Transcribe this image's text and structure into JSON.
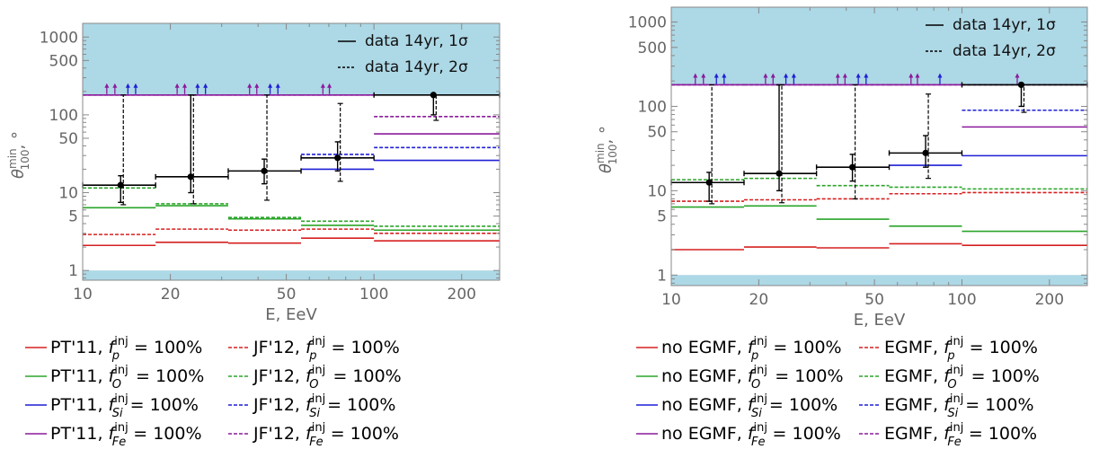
{
  "chart_data": [
    {
      "type": "line",
      "panel": "left",
      "xlabel": "E, EeV",
      "ylabel_base": "θ",
      "ylabel_sup": "min",
      "ylabel_sub": "100",
      "ylabel_tail": ", °",
      "x_scale": "log",
      "y_scale": "log",
      "xlim": [
        10,
        270
      ],
      "ylim": [
        0.75,
        1500
      ],
      "x_ticks": [
        {
          "v": 10,
          "label": "10"
        },
        {
          "v": 20,
          "label": "20"
        },
        {
          "v": 50,
          "label": "50"
        },
        {
          "v": 100,
          "label": "100"
        },
        {
          "v": 200,
          "label": "200"
        }
      ],
      "y_ticks": [
        {
          "v": 1,
          "label": "1"
        },
        {
          "v": 5,
          "label": "5"
        },
        {
          "v": 10,
          "label": "10"
        },
        {
          "v": 50,
          "label": "50"
        },
        {
          "v": 100,
          "label": "100"
        },
        {
          "v": 500,
          "label": "500"
        },
        {
          "v": 1000,
          "label": "1000"
        }
      ],
      "shade_bands": [
        {
          "from": 0.75,
          "to": 1.0
        },
        {
          "from": 180,
          "to": 1500
        }
      ],
      "bin_edges": [
        10,
        17.8,
        31.6,
        56.2,
        100,
        270
      ],
      "data_legend": [
        {
          "style": "solid",
          "label": "data 14yr, 1σ"
        },
        {
          "style": "dashed",
          "label": "data 14yr, 2σ"
        }
      ],
      "data_points": [
        {
          "x": 13.5,
          "y": 12.5,
          "xlo": 10,
          "xhi": 17.8,
          "y1lo": 7.5,
          "y1hi": 16.5,
          "y2lo": 7,
          "y2hi": 180
        },
        {
          "x": 23.5,
          "y": 16,
          "xlo": 17.8,
          "xhi": 31.6,
          "y1lo": 10,
          "y1hi": 180,
          "y2lo": 7.2,
          "y2hi": 180
        },
        {
          "x": 42,
          "y": 19,
          "xlo": 31.6,
          "xhi": 56.2,
          "y1lo": 13,
          "y1hi": 27,
          "y2lo": 8,
          "y2hi": 180
        },
        {
          "x": 75,
          "y": 28,
          "xlo": 56.2,
          "xhi": 100,
          "y1lo": 19,
          "y1hi": 45,
          "y2lo": 14,
          "y2hi": 140
        },
        {
          "x": 160,
          "y": 180,
          "xlo": 100,
          "xhi": 270,
          "y1lo": 100,
          "y1hi": 180,
          "y2lo": 85,
          "y2hi": 180
        }
      ],
      "series": [
        {
          "color": "#d62020",
          "style": "solid",
          "values": [
            2.1,
            2.3,
            2.25,
            2.6,
            2.4
          ]
        },
        {
          "color": "#d62020",
          "style": "dashed",
          "values": [
            2.9,
            3.4,
            3.3,
            3.4,
            3.0
          ]
        },
        {
          "color": "#2aa52a",
          "style": "solid",
          "values": [
            6.4,
            6.8,
            4.6,
            3.8,
            3.3
          ]
        },
        {
          "color": "#2aa52a",
          "style": "dashed",
          "values": [
            11.5,
            7.2,
            4.8,
            4.3,
            3.7
          ]
        },
        {
          "color": "#1f1fd6",
          "style": "solid",
          "values": [
            null,
            null,
            null,
            20,
            26
          ]
        },
        {
          "color": "#1f1fd6",
          "style": "dashed",
          "values": [
            null,
            null,
            null,
            31,
            38
          ]
        },
        {
          "color": "#8b1a9b",
          "style": "solid",
          "values": [
            180,
            180,
            180,
            180,
            57
          ]
        },
        {
          "color": "#8b1a9b",
          "style": "dashed",
          "values": [
            180,
            180,
            180,
            180,
            95
          ]
        }
      ],
      "limit_arrows": [
        {
          "x": 12.1,
          "color": "#8b1a9b"
        },
        {
          "x": 12.9,
          "color": "#8b1a9b"
        },
        {
          "x": 14.3,
          "color": "#1f1fd6"
        },
        {
          "x": 15.2,
          "color": "#1f1fd6"
        },
        {
          "x": 21.1,
          "color": "#8b1a9b"
        },
        {
          "x": 22.4,
          "color": "#8b1a9b"
        },
        {
          "x": 24.8,
          "color": "#1f1fd6"
        },
        {
          "x": 26.4,
          "color": "#1f1fd6"
        },
        {
          "x": 37.4,
          "color": "#8b1a9b"
        },
        {
          "x": 39.6,
          "color": "#8b1a9b"
        },
        {
          "x": 44.0,
          "color": "#1f1fd6"
        },
        {
          "x": 46.8,
          "color": "#1f1fd6"
        },
        {
          "x": 66.8,
          "color": "#8b1a9b"
        },
        {
          "x": 70.3,
          "color": "#8b1a9b"
        }
      ],
      "legend": [
        {
          "color": "#d62020",
          "style": "solid",
          "text": "PT'11, ",
          "sub": "p"
        },
        {
          "color": "#d62020",
          "style": "dashed",
          "text": "JF'12, ",
          "sub": "p"
        },
        {
          "color": "#2aa52a",
          "style": "solid",
          "text": "PT'11, ",
          "sub": "O"
        },
        {
          "color": "#2aa52a",
          "style": "dashed",
          "text": "JF'12, ",
          "sub": "O"
        },
        {
          "color": "#1f1fd6",
          "style": "solid",
          "text": "PT'11, ",
          "sub": "Si"
        },
        {
          "color": "#1f1fd6",
          "style": "dashed",
          "text": "JF'12, ",
          "sub": "Si"
        },
        {
          "color": "#8b1a9b",
          "style": "solid",
          "text": "PT'11, ",
          "sub": "Fe"
        },
        {
          "color": "#8b1a9b",
          "style": "dashed",
          "text": "JF'12, ",
          "sub": "Fe"
        }
      ],
      "legend_f": "f",
      "legend_sup": "inj",
      "legend_tail": " = 100%"
    },
    {
      "type": "line",
      "panel": "right",
      "xlabel": "E, EeV",
      "ylabel_base": "θ",
      "ylabel_sup": "min",
      "ylabel_sub": "100",
      "ylabel_tail": ", °",
      "x_scale": "log",
      "y_scale": "log",
      "xlim": [
        10,
        270
      ],
      "ylim": [
        0.75,
        1500
      ],
      "x_ticks": [
        {
          "v": 10,
          "label": "10"
        },
        {
          "v": 20,
          "label": "20"
        },
        {
          "v": 50,
          "label": "50"
        },
        {
          "v": 100,
          "label": "100"
        },
        {
          "v": 200,
          "label": "200"
        }
      ],
      "y_ticks": [
        {
          "v": 1,
          "label": "1"
        },
        {
          "v": 5,
          "label": "5"
        },
        {
          "v": 10,
          "label": "10"
        },
        {
          "v": 50,
          "label": "50"
        },
        {
          "v": 100,
          "label": "100"
        },
        {
          "v": 500,
          "label": "500"
        },
        {
          "v": 1000,
          "label": "1000"
        }
      ],
      "shade_bands": [
        {
          "from": 0.75,
          "to": 1.0
        },
        {
          "from": 180,
          "to": 1500
        }
      ],
      "bin_edges": [
        10,
        17.8,
        31.6,
        56.2,
        100,
        270
      ],
      "data_legend": [
        {
          "style": "solid",
          "label": "data 14yr, 1σ"
        },
        {
          "style": "dashed",
          "label": "data 14yr, 2σ"
        }
      ],
      "data_points": [
        {
          "x": 13.5,
          "y": 12.5,
          "xlo": 10,
          "xhi": 17.8,
          "y1lo": 7.5,
          "y1hi": 16.5,
          "y2lo": 7,
          "y2hi": 180
        },
        {
          "x": 23.5,
          "y": 16,
          "xlo": 17.8,
          "xhi": 31.6,
          "y1lo": 10,
          "y1hi": 180,
          "y2lo": 7.2,
          "y2hi": 180
        },
        {
          "x": 42,
          "y": 19,
          "xlo": 31.6,
          "xhi": 56.2,
          "y1lo": 13,
          "y1hi": 27,
          "y2lo": 8,
          "y2hi": 180
        },
        {
          "x": 75,
          "y": 28,
          "xlo": 56.2,
          "xhi": 100,
          "y1lo": 19,
          "y1hi": 45,
          "y2lo": 14,
          "y2hi": 140
        },
        {
          "x": 160,
          "y": 180,
          "xlo": 100,
          "xhi": 270,
          "y1lo": 100,
          "y1hi": 180,
          "y2lo": 85,
          "y2hi": 180
        }
      ],
      "series": [
        {
          "color": "#d62020",
          "style": "solid",
          "values": [
            2.0,
            2.15,
            2.1,
            2.35,
            2.25
          ]
        },
        {
          "color": "#d62020",
          "style": "dashed",
          "values": [
            7.5,
            7.8,
            8.0,
            9.2,
            9.5
          ]
        },
        {
          "color": "#2aa52a",
          "style": "solid",
          "values": [
            6.4,
            6.6,
            4.6,
            3.8,
            3.3
          ]
        },
        {
          "color": "#2aa52a",
          "style": "dashed",
          "values": [
            13.5,
            14,
            11.5,
            11,
            10.5
          ]
        },
        {
          "color": "#1f1fd6",
          "style": "solid",
          "values": [
            null,
            null,
            null,
            20,
            26
          ]
        },
        {
          "color": "#1f1fd6",
          "style": "dashed",
          "values": [
            null,
            null,
            null,
            null,
            90
          ]
        },
        {
          "color": "#8b1a9b",
          "style": "solid",
          "values": [
            180,
            180,
            180,
            180,
            57
          ]
        },
        {
          "color": "#8b1a9b",
          "style": "dashed",
          "values": [
            180,
            180,
            180,
            180,
            180
          ]
        }
      ],
      "limit_arrows": [
        {
          "x": 12.1,
          "color": "#8b1a9b"
        },
        {
          "x": 12.9,
          "color": "#8b1a9b"
        },
        {
          "x": 14.3,
          "color": "#1f1fd6"
        },
        {
          "x": 15.2,
          "color": "#1f1fd6"
        },
        {
          "x": 21.1,
          "color": "#8b1a9b"
        },
        {
          "x": 22.4,
          "color": "#8b1a9b"
        },
        {
          "x": 24.8,
          "color": "#1f1fd6"
        },
        {
          "x": 26.4,
          "color": "#1f1fd6"
        },
        {
          "x": 37.4,
          "color": "#8b1a9b"
        },
        {
          "x": 39.6,
          "color": "#8b1a9b"
        },
        {
          "x": 44.0,
          "color": "#1f1fd6"
        },
        {
          "x": 46.8,
          "color": "#1f1fd6"
        },
        {
          "x": 66.8,
          "color": "#8b1a9b"
        },
        {
          "x": 70.3,
          "color": "#8b1a9b"
        },
        {
          "x": 84,
          "color": "#1f1fd6"
        },
        {
          "x": 155,
          "color": "#8b1a9b"
        }
      ],
      "legend": [
        {
          "color": "#d62020",
          "style": "solid",
          "text": "no EGMF, ",
          "sub": "p"
        },
        {
          "color": "#d62020",
          "style": "dashed",
          "text": "EGMF, ",
          "sub": "p"
        },
        {
          "color": "#2aa52a",
          "style": "solid",
          "text": "no EGMF, ",
          "sub": "O"
        },
        {
          "color": "#2aa52a",
          "style": "dashed",
          "text": "EGMF, ",
          "sub": "O"
        },
        {
          "color": "#1f1fd6",
          "style": "solid",
          "text": "no EGMF, ",
          "sub": "Si"
        },
        {
          "color": "#1f1fd6",
          "style": "dashed",
          "text": "EGMF, ",
          "sub": "Si"
        },
        {
          "color": "#8b1a9b",
          "style": "solid",
          "text": "no EGMF, ",
          "sub": "Fe"
        },
        {
          "color": "#8b1a9b",
          "style": "dashed",
          "text": "EGMF, ",
          "sub": "Fe"
        }
      ],
      "legend_f": "f",
      "legend_sup": "inj",
      "legend_tail": " = 100%"
    }
  ]
}
